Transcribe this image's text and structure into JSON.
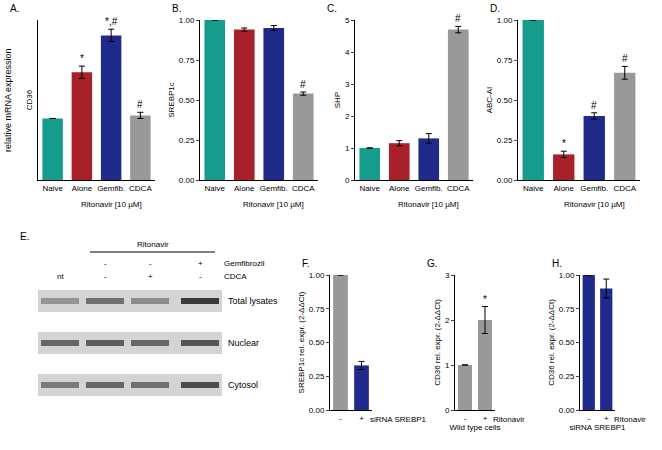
{
  "figure": {
    "ylabel": "relative mRNA expression"
  },
  "chart_data": [
    {
      "type": "bar",
      "title": "A.",
      "ylabel": "CD36",
      "group_label": "Ritonavir [10 µM]",
      "categories": [
        "Naive",
        "Alone",
        "Gemfib.",
        "CDCA"
      ],
      "values": [
        1.0,
        1.75,
        2.35,
        1.05
      ],
      "errors": [
        null,
        0.1,
        0.1,
        0.05
      ],
      "colors": [
        "#169c8c",
        "#a8202a",
        "#1f2a8a",
        "#999999"
      ],
      "ylim": [
        0,
        2.6
      ],
      "tick_labels": "x",
      "grid": false,
      "annotations": [
        {
          "category": "Alone",
          "text": "*"
        },
        {
          "category": "Gemfib.",
          "text": "*,#"
        },
        {
          "category": "CDCA",
          "text": "#"
        }
      ]
    },
    {
      "type": "bar",
      "title": "B.",
      "ylabel": "SREBP1c",
      "group_label": "Ritonavir [10 µM]",
      "categories": [
        "Naive",
        "Alone",
        "Gemfib.",
        "CDCA"
      ],
      "values": [
        1.0,
        0.94,
        0.95,
        0.54
      ],
      "errors": [
        null,
        0.01,
        0.015,
        0.01
      ],
      "colors": [
        "#169c8c",
        "#a8202a",
        "#1f2a8a",
        "#999999"
      ],
      "ylim": [
        0,
        1.0
      ],
      "yticks": [
        {
          "value": 0,
          "label": "0.00"
        },
        {
          "value": 0.25,
          "label": "0.25"
        },
        {
          "value": 0.5,
          "label": "0.50"
        },
        {
          "value": 0.75,
          "label": "0.75"
        },
        {
          "value": 1,
          "label": "1.00"
        }
      ],
      "grid": false,
      "annotations": [
        {
          "category": "CDCA",
          "text": "#"
        }
      ]
    },
    {
      "type": "bar",
      "title": "C.",
      "ylabel": "SHP",
      "group_label": "Ritonavir [10 µM]",
      "categories": [
        "Naive",
        "Alone",
        "Gemfib.",
        "CDCA"
      ],
      "values": [
        1.0,
        1.15,
        1.3,
        4.7
      ],
      "errors": [
        null,
        0.08,
        0.15,
        0.1
      ],
      "colors": [
        "#169c8c",
        "#a8202a",
        "#1f2a8a",
        "#999999"
      ],
      "ylim": [
        0,
        5
      ],
      "yticks": [
        0,
        1,
        2,
        3,
        4,
        5
      ],
      "grid": false,
      "annotations": [
        {
          "category": "CDCA",
          "text": "#"
        }
      ]
    },
    {
      "type": "bar",
      "title": "D.",
      "ylabel": "ABC-AI",
      "group_label": "Ritonavir [10 µM]",
      "categories": [
        "Naive",
        "Alone",
        "Gemfib.",
        "CDCA"
      ],
      "values": [
        1.0,
        0.16,
        0.4,
        0.67
      ],
      "errors": [
        null,
        0.02,
        0.02,
        0.04
      ],
      "colors": [
        "#169c8c",
        "#a8202a",
        "#1f2a8a",
        "#999999"
      ],
      "ylim": [
        0,
        1.0
      ],
      "yticks": [
        {
          "value": 0,
          "label": "0.00"
        },
        {
          "value": 0.25,
          "label": "0.25"
        },
        {
          "value": 0.5,
          "label": "0.50"
        },
        {
          "value": 0.75,
          "label": "0.75"
        },
        {
          "value": 1,
          "label": "1.00"
        }
      ],
      "grid": false,
      "annotations": [
        {
          "category": "Alone",
          "text": "*"
        },
        {
          "category": "Gemfib.",
          "text": "#"
        },
        {
          "category": "CDCA",
          "text": "#"
        }
      ]
    },
    {
      "type": "bar",
      "title": "F.",
      "ylabel": "SREBP1c rel. expr. (2-ΔΔCt)",
      "group_label": "siRNA SREBP1",
      "categories": [
        "-",
        "+"
      ],
      "values": [
        1.0,
        0.33
      ],
      "errors": [
        null,
        0.03
      ],
      "colors": [
        "#999999",
        "#1f2a8a"
      ],
      "ylim": [
        0,
        1.0
      ],
      "yticks": [
        {
          "value": 0,
          "label": "0.00"
        },
        {
          "value": 0.25,
          "label": "0.25"
        },
        {
          "value": 0.5,
          "label": "0.50"
        },
        {
          "value": 0.75,
          "label": "0.75"
        },
        {
          "value": 1,
          "label": "1.00"
        }
      ],
      "grid": false
    },
    {
      "type": "bar",
      "title": "G.",
      "ylabel": "CD36 rel. expr. (2-ΔΔCt)",
      "group_label": "Ritonavir",
      "xlabel": "Wild type cells",
      "categories": [
        "-",
        "+"
      ],
      "values": [
        1.0,
        2.0
      ],
      "errors": [
        null,
        0.3
      ],
      "colors": [
        "#999999",
        "#999999"
      ],
      "ylim": [
        0,
        3
      ],
      "yticks": [
        0,
        1,
        2,
        3
      ],
      "grid": false,
      "annotations": [
        {
          "category": "+",
          "text": "*"
        }
      ]
    },
    {
      "type": "bar",
      "title": "H.",
      "ylabel": "CD36 rel. expr. (2-ΔΔCt)",
      "group_label": "Ritonavir",
      "xlabel": "siRNA SREBP1",
      "categories": [
        "-",
        "+"
      ],
      "values": [
        1.0,
        0.9
      ],
      "errors": [
        null,
        0.07
      ],
      "colors": [
        "#1f2a8a",
        "#1f2a8a"
      ],
      "ylim": [
        0,
        1.0
      ],
      "yticks": [
        {
          "value": 0,
          "label": "0.00"
        },
        {
          "value": 0.25,
          "label": "0.25"
        },
        {
          "value": 0.5,
          "label": "0.50"
        },
        {
          "value": 0.75,
          "label": "0.75"
        },
        {
          "value": 1,
          "label": "1.00"
        }
      ],
      "grid": false
    }
  ],
  "blot": {
    "label": "E.",
    "header": "Ritonavir",
    "rows": [
      {
        "name": "Gemfibrozil",
        "marks": [
          null,
          "-",
          "-",
          "+"
        ]
      },
      {
        "name": "CDCA",
        "marks": [
          "nt",
          "-",
          "+",
          "-"
        ]
      }
    ],
    "panels": [
      "Total lysates",
      "Nuclear",
      "Cytosol"
    ]
  }
}
